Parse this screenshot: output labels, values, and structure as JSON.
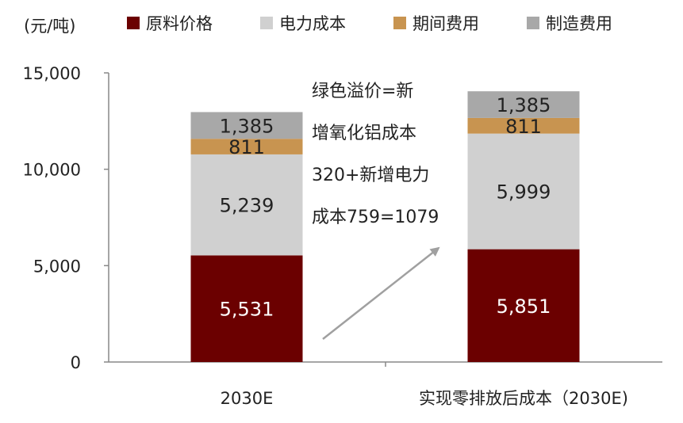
{
  "chart_data": {
    "type": "bar",
    "stacked": true,
    "unit_label": "(元/吨)",
    "categories": [
      "2030E",
      "实现零排放后成本（2030E)"
    ],
    "series": [
      {
        "name": "原料价格",
        "color": "#6b0000",
        "values": [
          5531,
          5851
        ],
        "labels": [
          "5,531",
          "5,851"
        ]
      },
      {
        "name": "电力成本",
        "color": "#d0d0d0",
        "values": [
          5239,
          5999
        ],
        "labels": [
          "5,239",
          "5,999"
        ]
      },
      {
        "name": "期间费用",
        "color": "#c89450",
        "values": [
          811,
          811
        ],
        "labels": [
          "811",
          "811"
        ]
      },
      {
        "name": "制造费用",
        "color": "#a8a8a8",
        "values": [
          1385,
          1385
        ],
        "labels": [
          "1,385",
          "1,385"
        ]
      }
    ],
    "ylim": [
      0,
      15000
    ],
    "yticks": [
      0,
      5000,
      10000,
      15000
    ],
    "ytick_labels": [
      "0",
      "5,000",
      "10,000",
      "15,000"
    ],
    "legend_position": "top",
    "grid": false,
    "annotation": {
      "lines": [
        "绿色溢价=新",
        "增氧化铝成本",
        "320+新增电力",
        "成本759=1079"
      ]
    }
  }
}
